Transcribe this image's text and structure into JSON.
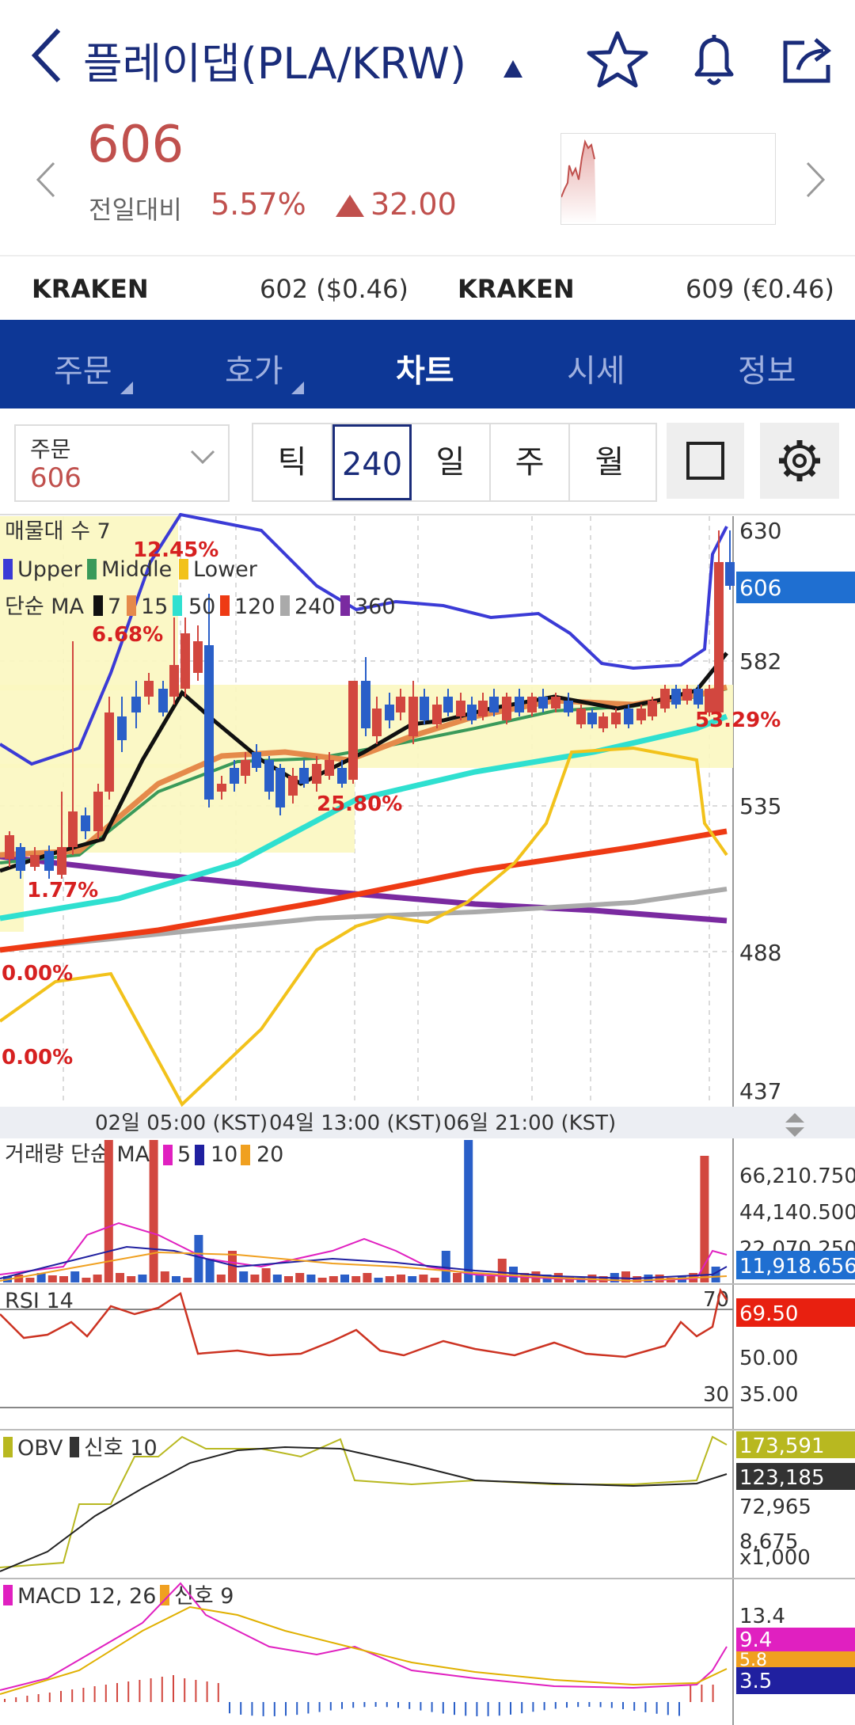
{
  "header": {
    "title": "플레이댑(PLA/KRW)",
    "icons": [
      "back-arrow-icon",
      "caret-icon",
      "star-icon",
      "bell-icon",
      "share-icon"
    ]
  },
  "price": {
    "current": "606",
    "change_label": "전일대비",
    "change_pct": "5.57%",
    "change_amt": "32.00",
    "up_color": "#c0504d"
  },
  "exchanges": [
    {
      "name": "KRAKEN",
      "value": "602 ($0.46)"
    },
    {
      "name": "KRAKEN",
      "value": "609 (€0.46)"
    }
  ],
  "tabs": [
    {
      "label": "주문"
    },
    {
      "label": "호가"
    },
    {
      "label": "차트"
    },
    {
      "label": "시세"
    },
    {
      "label": "정보"
    }
  ],
  "controls": {
    "order_label": "주문",
    "order_value": "606",
    "periods": [
      "틱",
      "240분",
      "일",
      "주",
      "월"
    ],
    "active_period": "240분"
  },
  "chart_data": {
    "type": "candlestick",
    "volume_profile_label": "매물대 수 7",
    "bollinger_legend": [
      "Upper",
      "Middle",
      "Lower"
    ],
    "ma_label": "단순 MA",
    "ma_periods": [
      "7",
      "15",
      "50",
      "120",
      "240",
      "360"
    ],
    "price_axis": [
      "630",
      "582",
      "535",
      "488",
      "437"
    ],
    "current_price_tag": "606",
    "profile_pct_labels": [
      "12.45%",
      "6.68%",
      "25.80%",
      "53.29%",
      "1.77%",
      "0.00%",
      "0.00%"
    ],
    "time_axis": [
      "02일 05:00 (KST)",
      "04일 13:00 (KST)",
      "06일 21:00 (KST)"
    ],
    "volume": {
      "label": "거래량 단순 MA",
      "ma": [
        "5",
        "10",
        "20"
      ],
      "axis": [
        "66,210.750",
        "44,140.500",
        "22,070.250"
      ],
      "current": "11,918.656"
    },
    "rsi": {
      "label": "RSI 14",
      "levels": [
        "70",
        "30"
      ],
      "axis": [
        "50.00",
        "35.00"
      ],
      "current": "69.50"
    },
    "obv": {
      "label": "OBV",
      "signal": "신호 10",
      "axis": [
        "72,965",
        "8,675"
      ],
      "unit": "x1,000",
      "current_obv": "173,591",
      "current_signal": "123,185"
    },
    "macd": {
      "label": "MACD 12, 26",
      "signal": "신호 9",
      "axis": [
        "13.4"
      ],
      "tags": [
        "9.4",
        "5.8",
        "3.5"
      ]
    },
    "colors": {
      "up": "#d2473f",
      "down": "#2a5fc8",
      "upper": "#3b3bd6",
      "middle": "#3a9a5a",
      "lower": "#f2c21b",
      "ma7": "#111111",
      "ma15": "#e58a4b",
      "ma50": "#2fe0d0",
      "ma120": "#ee3a14",
      "ma240": "#aaaaaa",
      "ma360": "#7a2aa0"
    }
  }
}
